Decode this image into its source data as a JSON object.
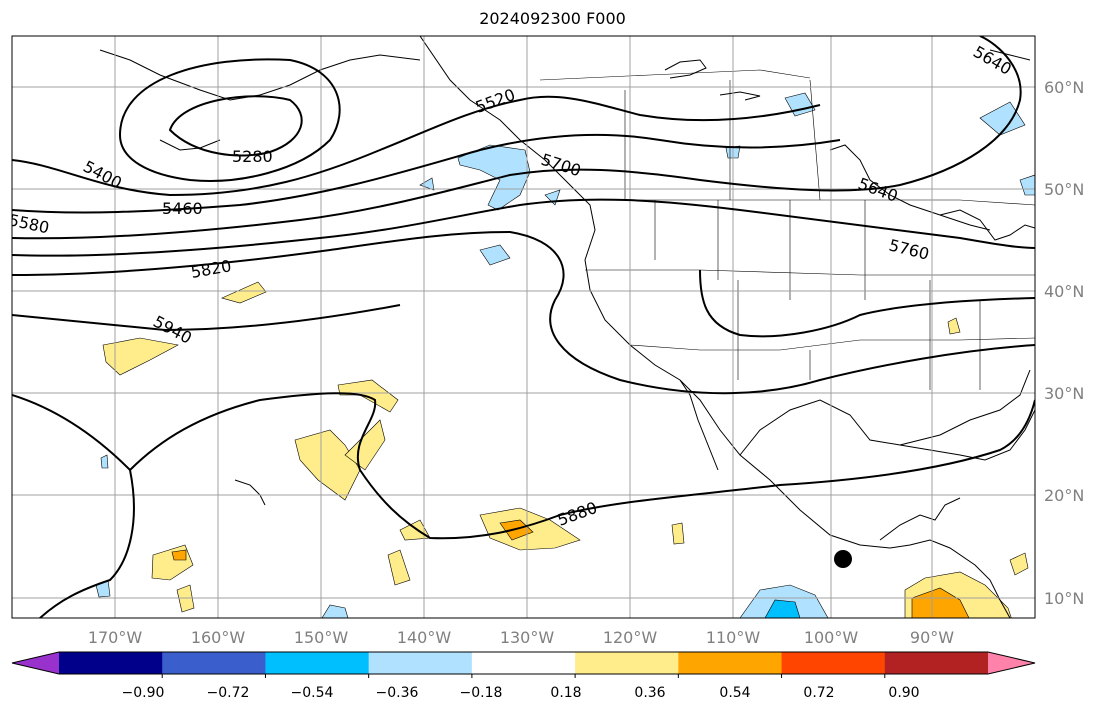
{
  "title": "2024092300 F000",
  "longitude_labels": [
    "170°W",
    "160°W",
    "150°W",
    "140°W",
    "130°W",
    "120°W",
    "110°W",
    "100°W",
    "90°W"
  ],
  "latitude_labels": [
    "60°N",
    "50°N",
    "40°N",
    "30°N",
    "20°N",
    "10°N"
  ],
  "contour_labels": [
    "5280",
    "5400",
    "5460",
    "5520",
    "5580",
    "5640",
    "5640",
    "5700",
    "5760",
    "5820",
    "5880",
    "5940"
  ],
  "colorbar": {
    "colors": [
      "#9932cc",
      "#00008b",
      "#3a5fcd",
      "#00bfff",
      "#b0e2ff",
      "#ffffff",
      "#ffec8b",
      "#ffa500",
      "#ff4500",
      "#b22222",
      "#ff82ab"
    ],
    "tick_labels": [
      "−0.90",
      "−0.72",
      "−0.54",
      "−0.36",
      "−0.18",
      "0.18",
      "0.36",
      "0.54",
      "0.72",
      "0.90"
    ]
  },
  "storm_marker": "filled-black-dot"
}
